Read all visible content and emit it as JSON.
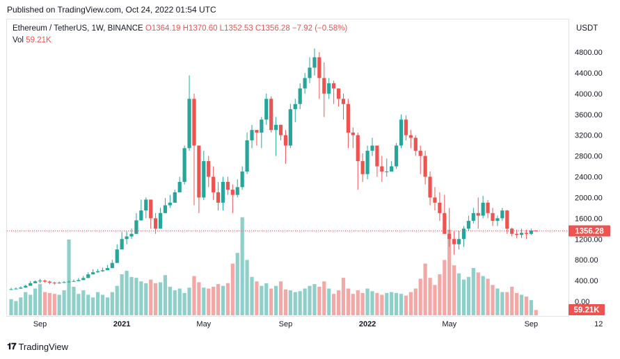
{
  "header": {
    "published": "Published on TradingView.com, Oct 24, 2022 01:54 UTC"
  },
  "legend": {
    "symbol": "Ethereum / TetherUS, 1W, BINANCE",
    "ohlc": "O1364.19 H1370.60 L1352.53 C1356.28 −7.92 (−0.58%)",
    "vol_label": "Vol",
    "vol_value": "59.21K"
  },
  "footer": {
    "brand": "TradingView"
  },
  "colors": {
    "up": "#26a69a",
    "down": "#ef5350",
    "up_vol": "#8ed0c9",
    "down_vol": "#f3a8a6",
    "label_bg": "#ef5350"
  },
  "chart_data": {
    "type": "candlestick",
    "currency": "USDT",
    "y_ticks": [
      "4800.00",
      "4400.00",
      "4000.00",
      "3600.00",
      "3200.00",
      "2800.00",
      "2400.00",
      "2000.00",
      "1600.00",
      "1200.00",
      "800.00",
      "400.00",
      "0.00"
    ],
    "x_ticks": [
      {
        "label": "Sep",
        "year": false,
        "week": 6
      },
      {
        "label": "2021",
        "year": true,
        "week": 23
      },
      {
        "label": "May",
        "year": false,
        "week": 40
      },
      {
        "label": "Sep",
        "year": false,
        "week": 57
      },
      {
        "label": "2022",
        "year": true,
        "week": 74
      },
      {
        "label": "May",
        "year": false,
        "week": 91
      },
      {
        "label": "Sep",
        "year": false,
        "week": 108
      },
      {
        "label": "12",
        "year": false,
        "week": 122
      }
    ],
    "ylim": [
      0,
      4900
    ],
    "last_price": "1356.28",
    "last_volume": "59.21K",
    "volume_scale_max": 1200,
    "closes": [
      234,
      246,
      265,
      300,
      350,
      385,
      400,
      380,
      360,
      350,
      360,
      370,
      380,
      390,
      410,
      450,
      520,
      560,
      580,
      600,
      640,
      740,
      1000,
      1200,
      1250,
      1300,
      1560,
      1750,
      1960,
      1600,
      1400,
      1700,
      1850,
      1900,
      2100,
      2300,
      2950,
      3900,
      3000,
      2000,
      2700,
      2400,
      2100,
      1900,
      2300,
      2150,
      2050,
      2200,
      2500,
      3100,
      3300,
      3250,
      3500,
      3900,
      3300,
      3400,
      3200,
      3000,
      3700,
      3800,
      4100,
      4300,
      4500,
      4700,
      4300,
      4000,
      4200,
      4100,
      3900,
      3800,
      3250,
      3200,
      2700,
      2450,
      2900,
      3000,
      2600,
      2500,
      2500,
      2600,
      3000,
      3500,
      3200,
      3150,
      2900,
      2800,
      2400,
      2000,
      1900,
      1700,
      1300,
      1200,
      1100,
      1200,
      1400,
      1550,
      1700,
      1650,
      1900,
      1700,
      1550,
      1600,
      1750,
      1400,
      1300,
      1280,
      1320,
      1300,
      1364,
      1356
    ],
    "highs": [
      260,
      270,
      290,
      320,
      390,
      400,
      430,
      420,
      400,
      380,
      380,
      390,
      400,
      420,
      450,
      490,
      560,
      620,
      620,
      650,
      700,
      800,
      1100,
      1340,
      1350,
      1400,
      1700,
      1960,
      2000,
      1900,
      1700,
      1800,
      1990,
      2050,
      2150,
      2400,
      3000,
      4350,
      4000,
      3000,
      2900,
      2800,
      2600,
      2300,
      2400,
      2400,
      2250,
      2350,
      2600,
      3250,
      3400,
      3300,
      3550,
      4000,
      3950,
      3550,
      3400,
      3300,
      3800,
      3900,
      4200,
      4400,
      4700,
      4870,
      4800,
      4600,
      4300,
      4250,
      4100,
      4000,
      3900,
      3350,
      3250,
      2850,
      3000,
      3150,
      3000,
      2800,
      2750,
      2700,
      3050,
      3600,
      3580,
      3300,
      3200,
      3000,
      2900,
      2500,
      2200,
      2100,
      2050,
      1800,
      1350,
      1350,
      1450,
      1650,
      1800,
      2000,
      2030,
      1950,
      1800,
      1650,
      1800,
      1760,
      1420,
      1380,
      1400,
      1380,
      1400,
      1370
    ],
    "lows": [
      220,
      230,
      240,
      260,
      300,
      350,
      350,
      360,
      330,
      320,
      340,
      350,
      360,
      375,
      390,
      430,
      500,
      540,
      550,
      570,
      600,
      700,
      950,
      1100,
      1100,
      1200,
      1500,
      1550,
      1600,
      1400,
      1300,
      1400,
      1700,
      1800,
      1900,
      2100,
      2250,
      2900,
      1850,
      1700,
      1950,
      2200,
      1950,
      1750,
      1750,
      2050,
      1700,
      2000,
      2150,
      2450,
      2950,
      3000,
      2950,
      3400,
      3250,
      2800,
      3100,
      2650,
      2950,
      3450,
      3700,
      4000,
      4200,
      4350,
      3900,
      3550,
      3900,
      3800,
      3750,
      3500,
      2950,
      2950,
      2150,
      2300,
      2350,
      2800,
      2400,
      2300,
      2400,
      2500,
      2550,
      2950,
      3100,
      2950,
      2800,
      2450,
      2250,
      1850,
      1750,
      1550,
      1700,
      1050,
      900,
      1000,
      1050,
      1350,
      1500,
      1400,
      1600,
      1600,
      1450,
      1450,
      1550,
      1300,
      1250,
      1220,
      1220,
      1200,
      1280,
      1352
    ],
    "volumes": [
      180,
      160,
      200,
      260,
      230,
      300,
      350,
      260,
      250,
      240,
      230,
      280,
      850,
      320,
      240,
      280,
      230,
      200,
      260,
      230,
      200,
      260,
      330,
      460,
      500,
      430,
      420,
      380,
      360,
      400,
      360,
      370,
      450,
      320,
      280,
      300,
      250,
      310,
      440,
      370,
      310,
      300,
      320,
      350,
      330,
      360,
      580,
      700,
      1100,
      620,
      430,
      380,
      330,
      360,
      300,
      330,
      380,
      290,
      280,
      260,
      270,
      300,
      330,
      350,
      320,
      380,
      300,
      240,
      280,
      420,
      300,
      240,
      280,
      250,
      300,
      270,
      250,
      230,
      250,
      260,
      250,
      240,
      220,
      260,
      300,
      410,
      580,
      420,
      340,
      460,
      620,
      960,
      560,
      470,
      400,
      430,
      530,
      480,
      440,
      410,
      340,
      300,
      260,
      260,
      320,
      250,
      230,
      210,
      170,
      59
    ]
  }
}
